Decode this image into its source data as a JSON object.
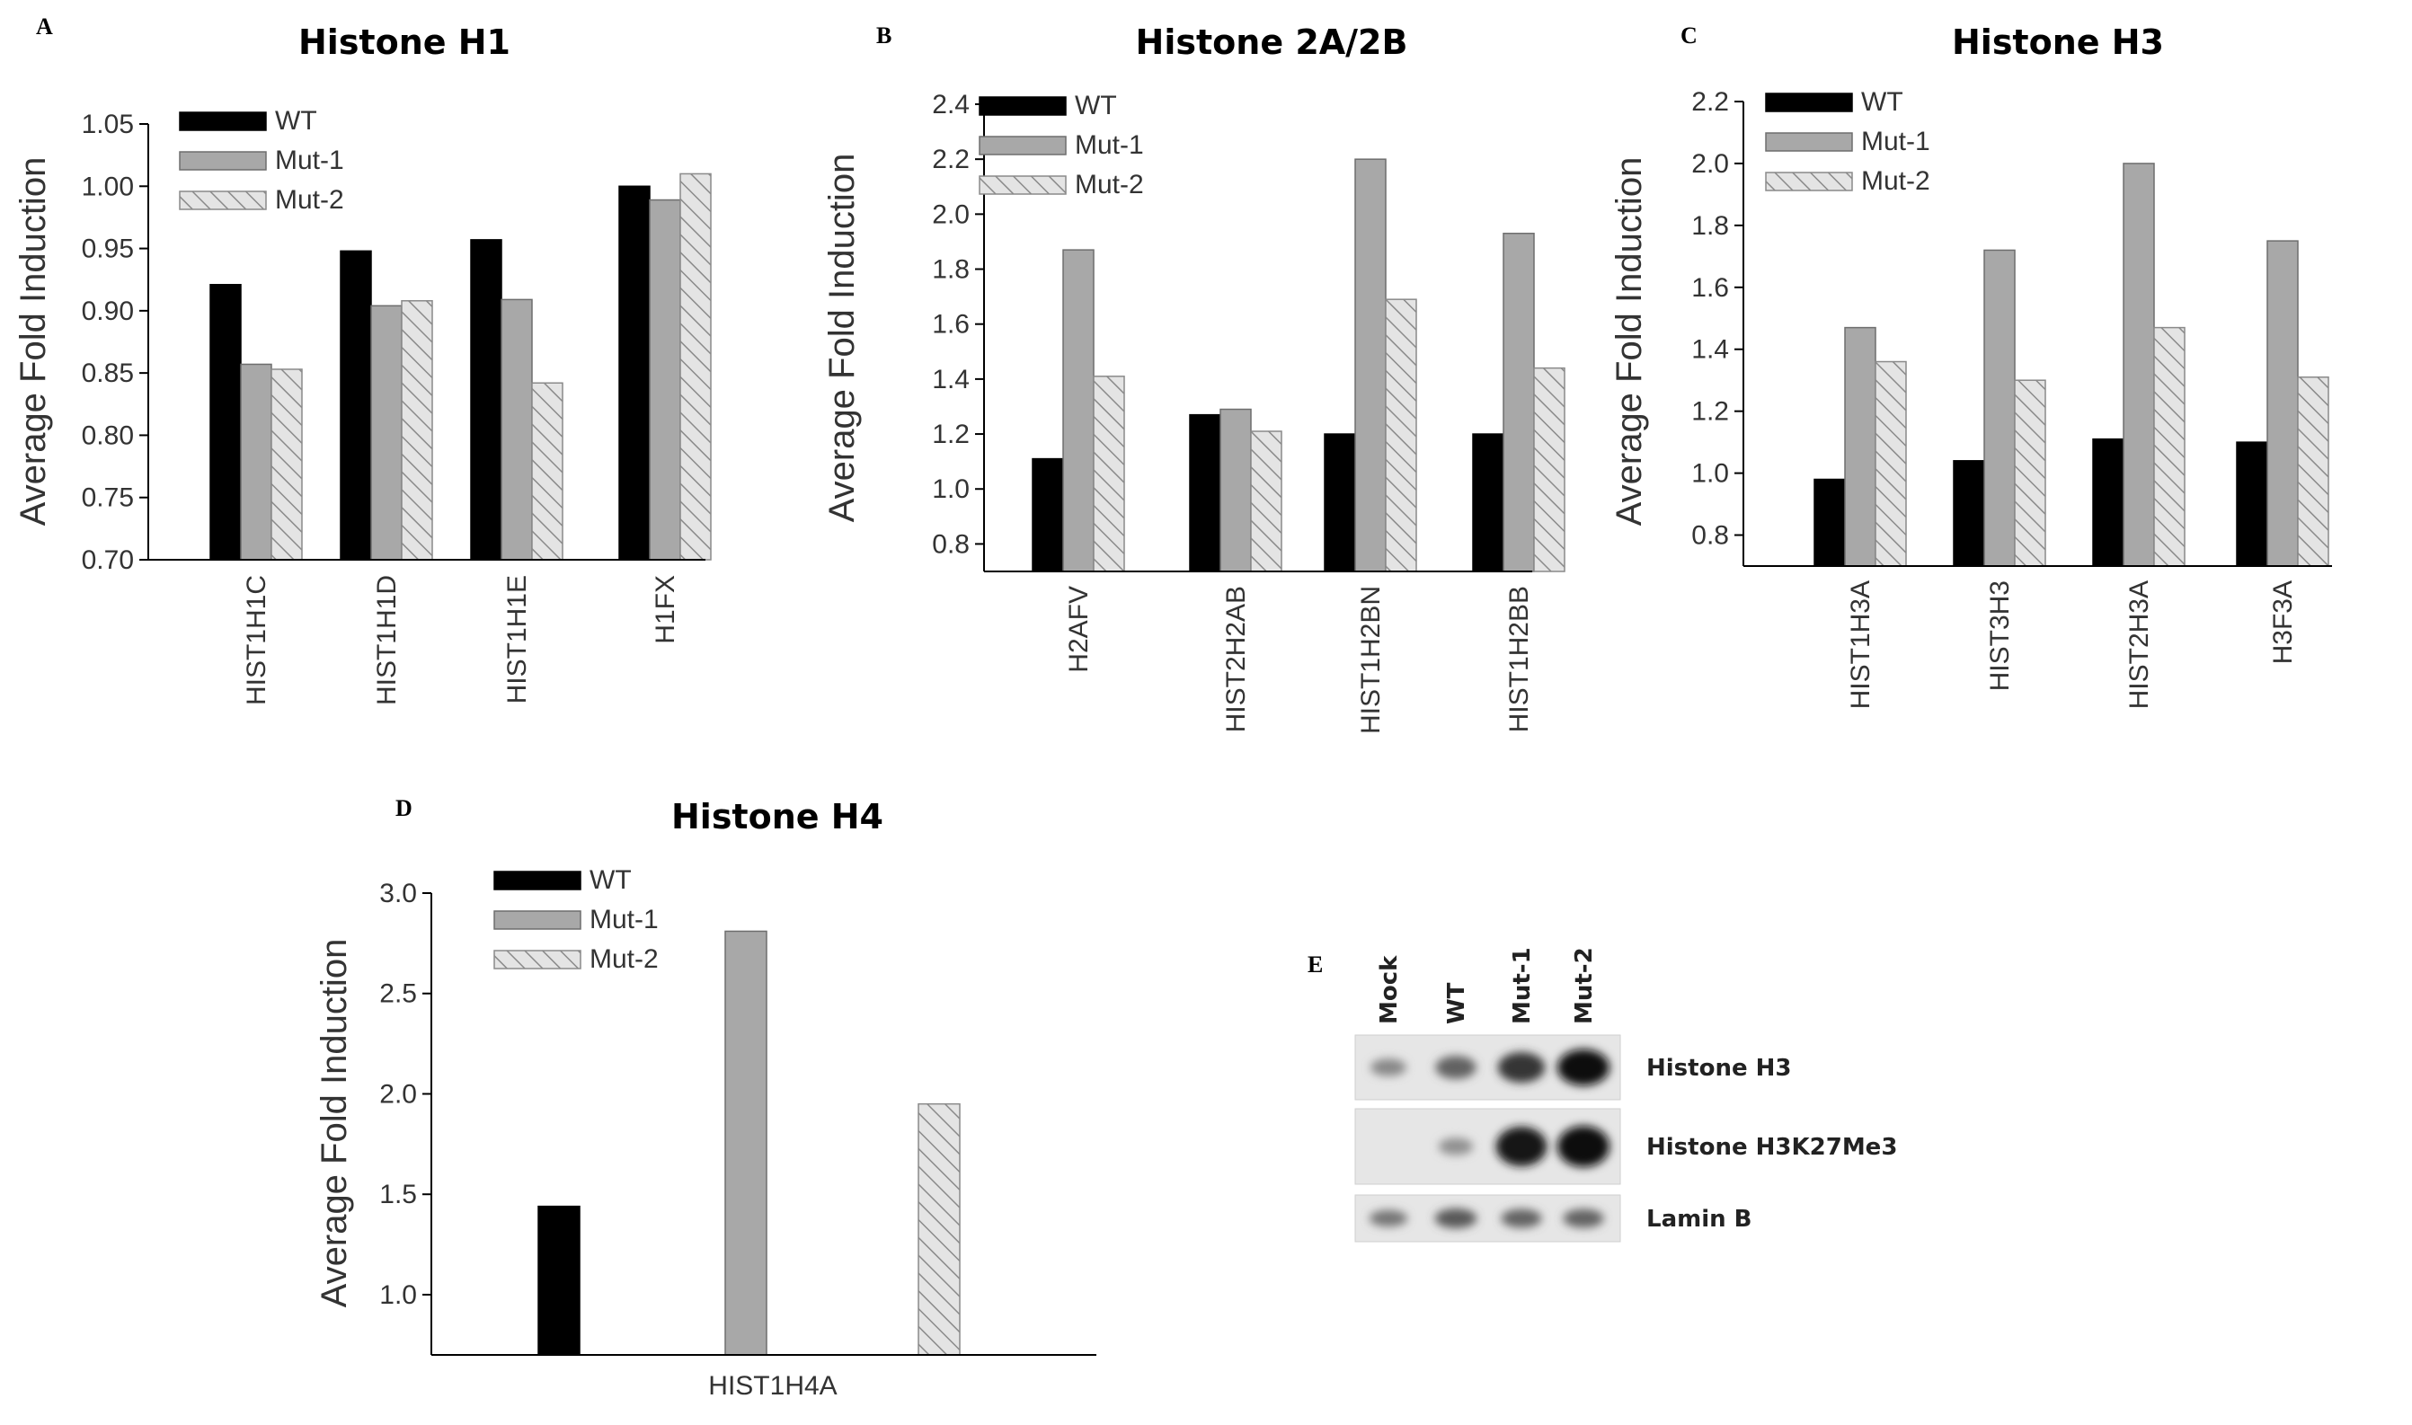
{
  "series_styles": {
    "WT": {
      "fill": "#000000",
      "stroke": "#000000",
      "hatch": false
    },
    "Mut-1": {
      "fill": "#a8a8a8",
      "stroke": "#6e6e6e",
      "hatch": false
    },
    "Mut-2": {
      "fill": "#e4e4e4",
      "stroke": "#8a8a8a",
      "hatch": true
    }
  },
  "chart_data": [
    {
      "panel": "A",
      "type": "bar",
      "title": "Histone H1",
      "ylabel": "Average Fold Induction",
      "xlabel": "",
      "categories": [
        "HIST1H1C",
        "HIST1H1D",
        "HIST1H1E",
        "H1FX"
      ],
      "series": [
        {
          "name": "WT",
          "values": [
            0.921,
            0.948,
            0.957,
            1.0
          ]
        },
        {
          "name": "Mut-1",
          "values": [
            0.857,
            0.904,
            0.909,
            0.989
          ]
        },
        {
          "name": "Mut-2",
          "values": [
            0.853,
            0.908,
            0.842,
            1.01
          ]
        }
      ],
      "ylim": [
        0.7,
        1.05
      ],
      "yticks": [
        "0.70",
        "0.75",
        "0.80",
        "0.85",
        "0.90",
        "0.95",
        "1.00",
        "1.05"
      ],
      "legend": "top-left",
      "grid": false
    },
    {
      "panel": "B",
      "type": "bar",
      "title": "Histone 2A/2B",
      "ylabel": "Average Fold Induction",
      "xlabel": "",
      "categories": [
        "H2AFV",
        "HIST2H2AB",
        "HIST1H2BN",
        "HIST1H2BB"
      ],
      "series": [
        {
          "name": "WT",
          "values": [
            1.11,
            1.27,
            1.2,
            1.2
          ]
        },
        {
          "name": "Mut-1",
          "values": [
            1.87,
            1.29,
            2.2,
            1.93
          ]
        },
        {
          "name": "Mut-2",
          "values": [
            1.41,
            1.21,
            1.69,
            1.44
          ]
        }
      ],
      "ylim": [
        0.7,
        2.4
      ],
      "yticks": [
        "0.8",
        "1.0",
        "1.2",
        "1.4",
        "1.6",
        "1.8",
        "2.0",
        "2.2",
        "2.4"
      ],
      "legend": "top-left",
      "grid": false
    },
    {
      "panel": "C",
      "type": "bar",
      "title": "Histone H3",
      "ylabel": "Average Fold Induction",
      "xlabel": "",
      "categories": [
        "HIST1H3A",
        "HIST3H3",
        "HIST2H3A",
        "H3F3A"
      ],
      "series": [
        {
          "name": "WT",
          "values": [
            0.98,
            1.04,
            1.11,
            1.1
          ]
        },
        {
          "name": "Mut-1",
          "values": [
            1.47,
            1.72,
            2.0,
            1.75
          ]
        },
        {
          "name": "Mut-2",
          "values": [
            1.36,
            1.3,
            1.47,
            1.31
          ]
        }
      ],
      "ylim": [
        0.7,
        2.2
      ],
      "yticks": [
        "0.8",
        "1.0",
        "1.2",
        "1.4",
        "1.6",
        "1.8",
        "2.0",
        "2.2"
      ],
      "legend": "top-left",
      "grid": false
    },
    {
      "panel": "D",
      "type": "bar",
      "title": "Histone H4",
      "ylabel": "Average Fold Induction",
      "xlabel": "",
      "categories": [
        "HIST1H4A"
      ],
      "series": [
        {
          "name": "WT",
          "values": [
            1.44
          ]
        },
        {
          "name": "Mut-1",
          "values": [
            2.81
          ]
        },
        {
          "name": "Mut-2",
          "values": [
            1.95
          ]
        }
      ],
      "ylim": [
        0.7,
        3.0
      ],
      "yticks": [
        "1.0",
        "1.5",
        "2.0",
        "2.5",
        "3.0"
      ],
      "legend": "top-left",
      "grid": false
    }
  ],
  "blot": {
    "panel": "E",
    "lanes": [
      "Mock",
      "WT",
      "Mut-1",
      "Mut-2"
    ],
    "rows": [
      {
        "label": "Histone H3",
        "intensity": [
          0.35,
          0.55,
          0.8,
          1.0
        ]
      },
      {
        "label": "Histone H3K27Me3",
        "intensity": [
          0.0,
          0.3,
          0.95,
          1.0
        ]
      },
      {
        "label": "Lamin B",
        "intensity": [
          0.45,
          0.6,
          0.55,
          0.55
        ]
      }
    ]
  }
}
